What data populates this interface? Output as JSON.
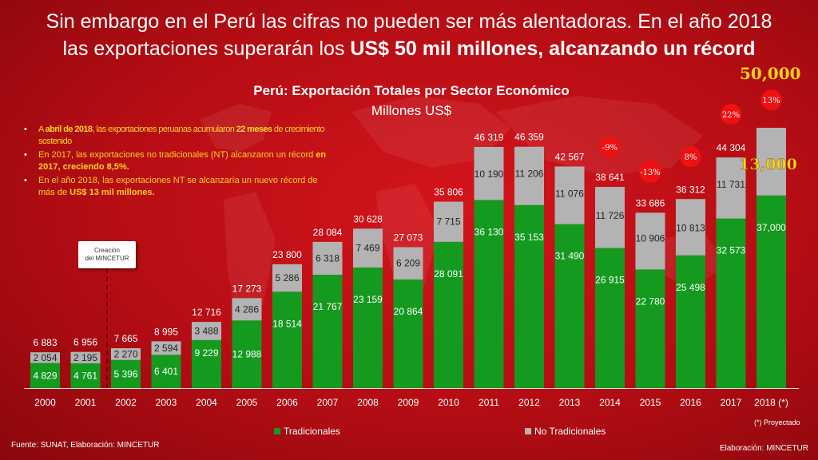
{
  "headline": {
    "line1": "Sin embargo en el Perú las cifras no pueden ser más alentadoras. En el año 2018",
    "line2_start": "las exportaciones superarán los ",
    "line2_bold": "US$ 50 mil millones, alcanzando un récord"
  },
  "callouts": {
    "total_2018": "50,000",
    "nt_2018": "13,000"
  },
  "creacion_box": {
    "line1": "Creación",
    "line2": "del MINCETUR"
  },
  "bullets": [
    {
      "t1": "A ",
      "b1": "abril de 2018",
      "t2": ", las exportaciones peruanas acumularon ",
      "b2": "22 meses",
      "t3": " de crecimiento sostenido"
    },
    {
      "t1": "En 2017, las exportaciones no tradicionales (NT) alcanzaron un récord ",
      "b1": "en 2017, creciendo 8,5%."
    },
    {
      "t1": "En el año 2018, las exportaciones NT se alcanzaría un nuevo récord de más de ",
      "b1": "US$ 13 mil millones."
    }
  ],
  "legend": {
    "traditional": "Tradicionales",
    "non_traditional": "No Tradicionales"
  },
  "footer": {
    "source": "Fuente: SUNAT, Elaboración: MINCETUR",
    "elaboration": "Elaboración: MINCETUR",
    "projected_note": "(*) Proyectado"
  },
  "colors": {
    "traditional": "#139a1f",
    "non_traditional": "#b3b3b3",
    "accent_yellow": "#ffd21a",
    "bubble": "#ee1111"
  },
  "chart_data": {
    "type": "bar",
    "stacked": true,
    "title": "Perú: Exportación Totales por Sector Económico",
    "subtitle": "Millones US$",
    "categories": [
      "2000",
      "2001",
      "2002",
      "2003",
      "2004",
      "2005",
      "2006",
      "2007",
      "2008",
      "2009",
      "2010",
      "2011",
      "2012",
      "2013",
      "2014",
      "2015",
      "2016",
      "2017",
      "2018 (*)"
    ],
    "series": [
      {
        "name": "Tradicionales",
        "values": [
          4829,
          4761,
          5396,
          6401,
          9229,
          12988,
          18514,
          21767,
          23159,
          20864,
          28091,
          36130,
          35153,
          31490,
          26915,
          22780,
          25498,
          32573,
          37000
        ],
        "labels": [
          "4 829",
          "4 761",
          "5 396",
          "6 401",
          "9 229",
          "12 988",
          "18 514",
          "21 767",
          "23 159",
          "20 864",
          "28 091",
          "36 130",
          "35 153",
          "31 490",
          "26 915",
          "22 780",
          "25 498",
          "32 573",
          "37,000"
        ]
      },
      {
        "name": "No Tradicionales",
        "values": [
          2054,
          2195,
          2270,
          2594,
          3488,
          4286,
          5286,
          6318,
          7469,
          6209,
          7715,
          10190,
          11206,
          11076,
          11726,
          10906,
          10813,
          11731,
          13000
        ],
        "labels": [
          "2 054",
          "2 195",
          "2 270",
          "2 594",
          "3 488",
          "4 286",
          "5 286",
          "6 318",
          "7 469",
          "6 209",
          "7 715",
          "10 190",
          "11 206",
          "11 076",
          "11 726",
          "10 906",
          "10 813",
          "11 731",
          ""
        ]
      }
    ],
    "totals": [
      6883,
      6956,
      7665,
      8995,
      12716,
      17273,
      23800,
      28084,
      30628,
      27073,
      35806,
      46319,
      46359,
      42567,
      38641,
      33686,
      36312,
      44304,
      50000
    ],
    "total_labels": [
      "6 883",
      "6 956",
      "7 665",
      "8 995",
      "12 716",
      "17 273",
      "23 800",
      "28 084",
      "30 628",
      "27 073",
      "35 806",
      "46 319",
      "46 359",
      "42 567",
      "38 641",
      "33 686",
      "36 312",
      "44 304",
      ""
    ],
    "growth_annotations": [
      {
        "category": "2014",
        "label": "-9%"
      },
      {
        "category": "2015",
        "label": "-13%"
      },
      {
        "category": "2016",
        "label": "8%"
      },
      {
        "category": "2017",
        "label": "22%"
      },
      {
        "category": "2018 (*)",
        "label": "13%"
      }
    ],
    "ylim": [
      0,
      50000
    ]
  }
}
